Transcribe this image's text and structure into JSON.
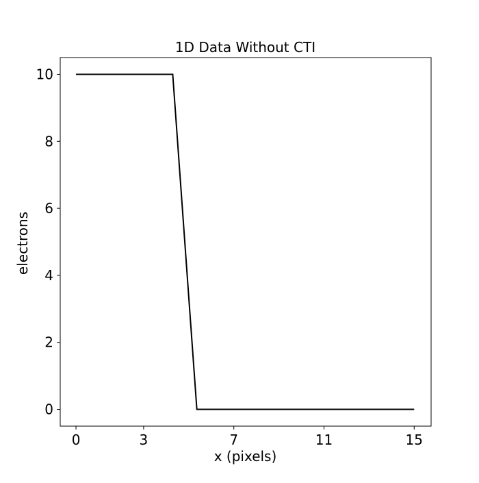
{
  "chart_data": {
    "type": "line",
    "title": "1D Data Without CTI",
    "xlabel": "x (pixels)",
    "ylabel": "electrons",
    "xlim": [
      -0.7,
      15.75
    ],
    "ylim": [
      -0.5,
      10.5
    ],
    "xticks": [
      0,
      3,
      7,
      11,
      15
    ],
    "yticks": [
      0,
      2,
      4,
      6,
      8,
      10
    ],
    "grid": false,
    "series": [
      {
        "color": "#000000",
        "x": [
          0,
          1,
          2,
          3,
          4.29,
          5.36,
          6,
          7,
          8,
          9,
          10,
          11,
          12,
          13,
          14,
          15
        ],
        "y": [
          10,
          10,
          10,
          10,
          10,
          0,
          0,
          0,
          0,
          0,
          0,
          0,
          0,
          0,
          0,
          0
        ]
      }
    ]
  }
}
